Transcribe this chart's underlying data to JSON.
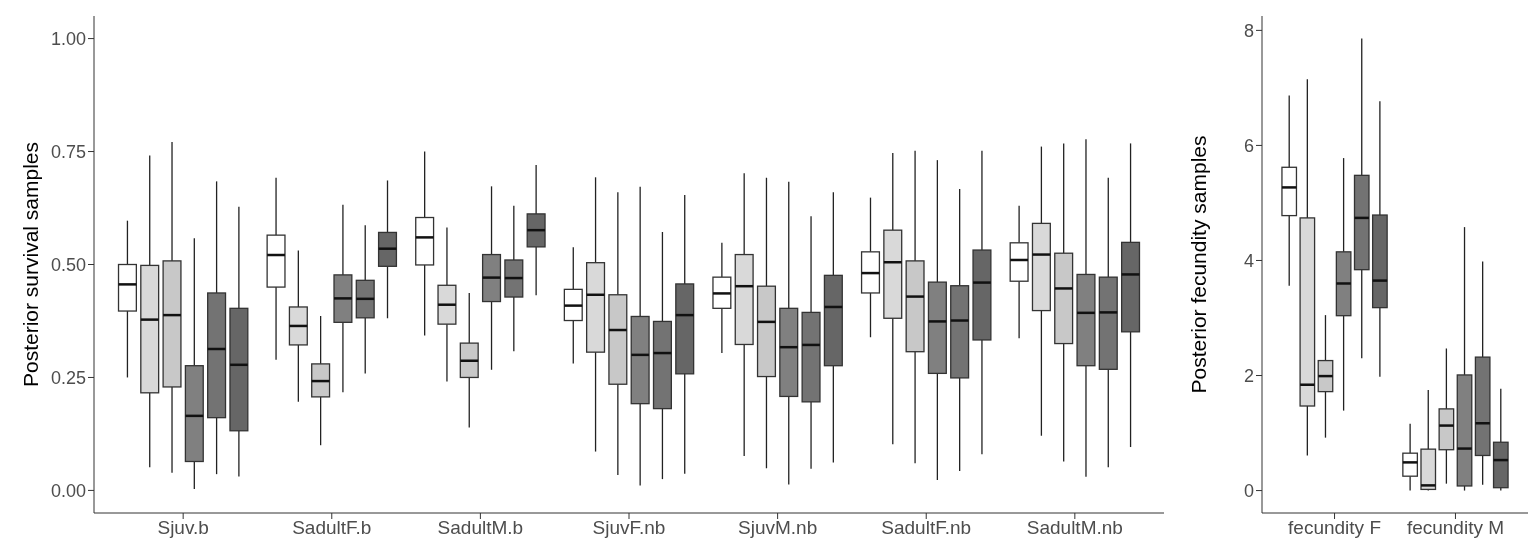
{
  "chart_data": [
    {
      "type": "box",
      "ylabel": "Posterior survival samples",
      "categories": [
        "Sjuv.b",
        "SadultF.b",
        "SadultM.b",
        "SjuvF.nb",
        "SjuvM.nb",
        "SadultF.nb",
        "SadultM.nb"
      ],
      "ylim": [
        -0.05,
        1.05
      ],
      "yticks": [
        {
          "value": 0,
          "label": "0.00"
        },
        {
          "value": 0.25,
          "label": "0.25"
        },
        {
          "value": 0.5,
          "label": "0.50"
        },
        {
          "value": 0.75,
          "label": "0.75"
        },
        {
          "value": 1,
          "label": "1.00"
        }
      ],
      "series": [
        {
          "color": "#ffffff",
          "boxes": [
            {
              "low": 0.25,
              "q1": 0.397,
              "median": 0.456,
              "q3": 0.5,
              "high": 0.597
            },
            {
              "low": 0.289,
              "q1": 0.45,
              "median": 0.521,
              "q3": 0.565,
              "high": 0.692
            },
            {
              "low": 0.343,
              "q1": 0.499,
              "median": 0.56,
              "q3": 0.604,
              "high": 0.75
            },
            {
              "low": 0.281,
              "q1": 0.376,
              "median": 0.409,
              "q3": 0.445,
              "high": 0.538
            },
            {
              "low": 0.304,
              "q1": 0.403,
              "median": 0.436,
              "q3": 0.472,
              "high": 0.548
            },
            {
              "low": 0.339,
              "q1": 0.437,
              "median": 0.481,
              "q3": 0.528,
              "high": 0.648
            },
            {
              "low": 0.337,
              "q1": 0.463,
              "median": 0.51,
              "q3": 0.548,
              "high": 0.63
            }
          ]
        },
        {
          "color": "#d9d9d9",
          "boxes": [
            {
              "low": 0.051,
              "q1": 0.216,
              "median": 0.378,
              "q3": 0.498,
              "high": 0.741
            },
            {
              "low": 0.196,
              "q1": 0.322,
              "median": 0.364,
              "q3": 0.406,
              "high": 0.531
            },
            {
              "low": 0.241,
              "q1": 0.368,
              "median": 0.411,
              "q3": 0.454,
              "high": 0.582
            },
            {
              "low": 0.086,
              "q1": 0.306,
              "median": 0.433,
              "q3": 0.504,
              "high": 0.693
            },
            {
              "low": 0.076,
              "q1": 0.323,
              "median": 0.452,
              "q3": 0.522,
              "high": 0.702
            },
            {
              "low": 0.102,
              "q1": 0.381,
              "median": 0.505,
              "q3": 0.576,
              "high": 0.747
            },
            {
              "low": 0.121,
              "q1": 0.398,
              "median": 0.522,
              "q3": 0.591,
              "high": 0.761
            }
          ]
        },
        {
          "color": "#c8c8c8",
          "boxes": [
            {
              "low": 0.039,
              "q1": 0.229,
              "median": 0.388,
              "q3": 0.508,
              "high": 0.771
            },
            {
              "low": 0.1,
              "q1": 0.207,
              "median": 0.242,
              "q3": 0.28,
              "high": 0.386
            },
            {
              "low": 0.139,
              "q1": 0.25,
              "median": 0.287,
              "q3": 0.326,
              "high": 0.437
            },
            {
              "low": 0.034,
              "q1": 0.235,
              "median": 0.355,
              "q3": 0.433,
              "high": 0.66
            },
            {
              "low": 0.049,
              "q1": 0.252,
              "median": 0.373,
              "q3": 0.452,
              "high": 0.692
            },
            {
              "low": 0.06,
              "q1": 0.307,
              "median": 0.429,
              "q3": 0.508,
              "high": 0.752
            },
            {
              "low": 0.064,
              "q1": 0.325,
              "median": 0.447,
              "q3": 0.525,
              "high": 0.768
            }
          ]
        },
        {
          "color": "#808080",
          "boxes": [
            {
              "low": 0.003,
              "q1": 0.064,
              "median": 0.165,
              "q3": 0.276,
              "high": 0.558
            },
            {
              "low": 0.217,
              "q1": 0.372,
              "median": 0.425,
              "q3": 0.477,
              "high": 0.632
            },
            {
              "low": 0.267,
              "q1": 0.418,
              "median": 0.471,
              "q3": 0.522,
              "high": 0.673
            },
            {
              "low": 0.011,
              "q1": 0.192,
              "median": 0.3,
              "q3": 0.385,
              "high": 0.672
            },
            {
              "low": 0.013,
              "q1": 0.208,
              "median": 0.317,
              "q3": 0.403,
              "high": 0.683
            },
            {
              "low": 0.023,
              "q1": 0.259,
              "median": 0.374,
              "q3": 0.461,
              "high": 0.731
            },
            {
              "low": 0.03,
              "q1": 0.276,
              "median": 0.393,
              "q3": 0.478,
              "high": 0.777
            }
          ]
        },
        {
          "color": "#737373",
          "boxes": [
            {
              "low": 0.036,
              "q1": 0.161,
              "median": 0.313,
              "q3": 0.437,
              "high": 0.684
            },
            {
              "low": 0.259,
              "q1": 0.382,
              "median": 0.424,
              "q3": 0.465,
              "high": 0.587
            },
            {
              "low": 0.308,
              "q1": 0.428,
              "median": 0.47,
              "q3": 0.51,
              "high": 0.63
            },
            {
              "low": 0.025,
              "q1": 0.181,
              "median": 0.304,
              "q3": 0.374,
              "high": 0.572
            },
            {
              "low": 0.048,
              "q1": 0.196,
              "median": 0.322,
              "q3": 0.394,
              "high": 0.607
            },
            {
              "low": 0.043,
              "q1": 0.249,
              "median": 0.376,
              "q3": 0.453,
              "high": 0.667
            },
            {
              "low": 0.051,
              "q1": 0.268,
              "median": 0.394,
              "q3": 0.472,
              "high": 0.692
            }
          ]
        },
        {
          "color": "#666666",
          "boxes": [
            {
              "low": 0.031,
              "q1": 0.132,
              "median": 0.278,
              "q3": 0.403,
              "high": 0.628
            },
            {
              "low": 0.381,
              "q1": 0.496,
              "median": 0.535,
              "q3": 0.571,
              "high": 0.686
            },
            {
              "low": 0.432,
              "q1": 0.539,
              "median": 0.576,
              "q3": 0.612,
              "high": 0.72
            },
            {
              "low": 0.037,
              "q1": 0.258,
              "median": 0.388,
              "q3": 0.457,
              "high": 0.654
            },
            {
              "low": 0.062,
              "q1": 0.276,
              "median": 0.406,
              "q3": 0.476,
              "high": 0.66
            },
            {
              "low": 0.08,
              "q1": 0.333,
              "median": 0.46,
              "q3": 0.532,
              "high": 0.752
            },
            {
              "low": 0.096,
              "q1": 0.351,
              "median": 0.478,
              "q3": 0.549,
              "high": 0.768
            }
          ]
        }
      ]
    },
    {
      "type": "box",
      "ylabel": "Posterior fecundity samples",
      "categories": [
        "fecundity F",
        "fecundity M"
      ],
      "ylim": [
        -0.39,
        8.25
      ],
      "yticks": [
        0,
        2,
        4,
        6,
        8
      ],
      "series": [
        {
          "color": "#ffffff",
          "boxes": [
            {
              "low": 3.56,
              "q1": 4.78,
              "median": 5.27,
              "q3": 5.62,
              "high": 6.87
            },
            {
              "low": 0,
              "q1": 0.25,
              "median": 0.49,
              "q3": 0.65,
              "high": 1.16
            }
          ]
        },
        {
          "color": "#d9d9d9",
          "boxes": [
            {
              "low": 0.61,
              "q1": 1.47,
              "median": 1.84,
              "q3": 4.74,
              "high": 7.15
            },
            {
              "low": 0,
              "q1": 0.02,
              "median": 0.09,
              "q3": 0.72,
              "high": 1.75
            }
          ]
        },
        {
          "color": "#c8c8c8",
          "boxes": [
            {
              "low": 0.92,
              "q1": 1.72,
              "median": 1.99,
              "q3": 2.26,
              "high": 3.05
            },
            {
              "low": 0.12,
              "q1": 0.71,
              "median": 1.13,
              "q3": 1.42,
              "high": 2.47
            }
          ]
        },
        {
          "color": "#808080",
          "boxes": [
            {
              "low": 1.39,
              "q1": 3.04,
              "median": 3.6,
              "q3": 4.15,
              "high": 5.78
            },
            {
              "low": 0,
              "q1": 0.08,
              "median": 0.73,
              "q3": 2.01,
              "high": 4.58
            }
          ]
        },
        {
          "color": "#737373",
          "boxes": [
            {
              "low": 2.3,
              "q1": 3.84,
              "median": 4.74,
              "q3": 5.48,
              "high": 7.86
            },
            {
              "low": 0.1,
              "q1": 0.61,
              "median": 1.17,
              "q3": 2.32,
              "high": 3.98
            }
          ]
        },
        {
          "color": "#666666",
          "boxes": [
            {
              "low": 1.98,
              "q1": 3.18,
              "median": 3.65,
              "q3": 4.79,
              "high": 6.77
            },
            {
              "low": 0,
              "q1": 0.05,
              "median": 0.53,
              "q3": 0.84,
              "high": 1.77
            }
          ]
        }
      ]
    }
  ]
}
